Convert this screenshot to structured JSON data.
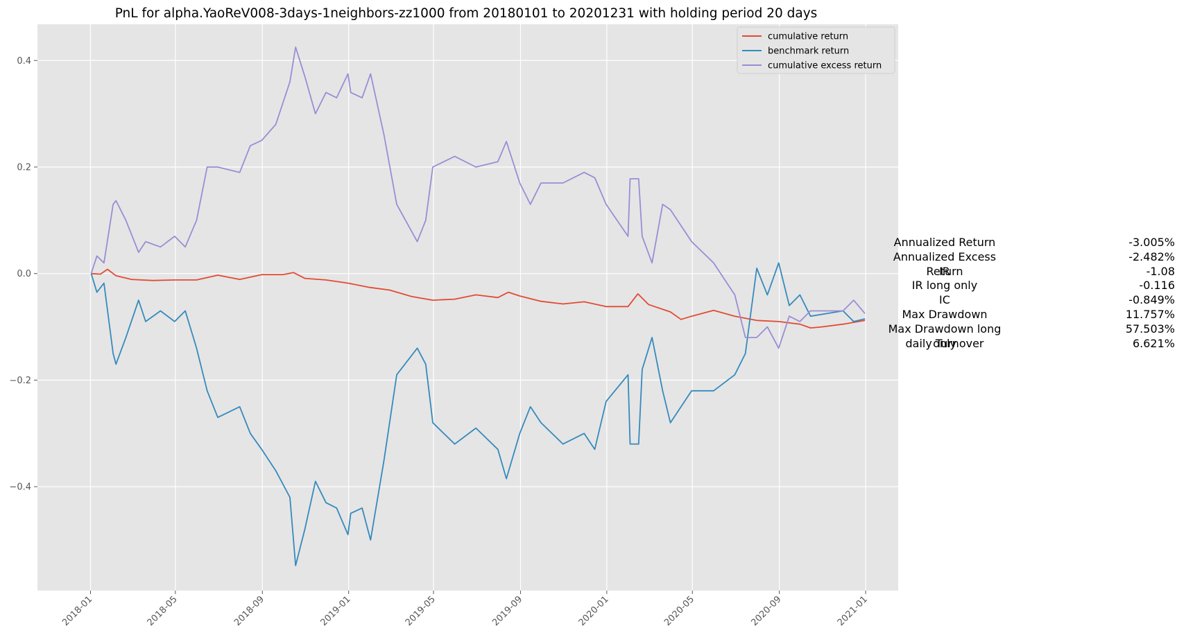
{
  "chart_data": {
    "type": "line",
    "title": "PnL for alpha.YaoReV008-3days-1neighbors-zz1000 from 20180101 to 20201231 with holding period 20 days",
    "xlabel": "",
    "ylabel": "",
    "x_ticks": [
      "2018-01",
      "2018-05",
      "2018-09",
      "2019-01",
      "2019-05",
      "2019-09",
      "2020-01",
      "2020-05",
      "2020-09",
      "2021-01"
    ],
    "y_ticks": [
      0.4,
      0.2,
      0.0,
      -0.2,
      -0.4
    ],
    "y_tick_labels": [
      "0.4",
      "0.2",
      "0.0",
      "−0.2",
      "−0.4"
    ],
    "xlim": [
      "2017-10-18",
      "2021-02-16"
    ],
    "ylim": [
      -0.595,
      0.468
    ],
    "grid": true,
    "legend_position": "top-right",
    "series": [
      {
        "name": "cumulative return",
        "color": "#E24A33",
        "points": [
          [
            "2018-01-02",
            0.0
          ],
          [
            "2018-01-15",
            -0.001
          ],
          [
            "2018-01-25",
            0.008
          ],
          [
            "2018-02-06",
            -0.004
          ],
          [
            "2018-02-28",
            -0.011
          ],
          [
            "2018-03-30",
            -0.013
          ],
          [
            "2018-04-30",
            -0.012
          ],
          [
            "2018-05-31",
            -0.012
          ],
          [
            "2018-06-30",
            -0.003
          ],
          [
            "2018-07-31",
            -0.011
          ],
          [
            "2018-08-31",
            -0.002
          ],
          [
            "2018-09-30",
            -0.002
          ],
          [
            "2018-10-15",
            0.002
          ],
          [
            "2018-10-31",
            -0.009
          ],
          [
            "2018-11-30",
            -0.012
          ],
          [
            "2018-12-31",
            -0.018
          ],
          [
            "2019-01-31",
            -0.026
          ],
          [
            "2019-02-28",
            -0.031
          ],
          [
            "2019-03-31",
            -0.043
          ],
          [
            "2019-04-30",
            -0.05
          ],
          [
            "2019-05-31",
            -0.048
          ],
          [
            "2019-06-30",
            -0.04
          ],
          [
            "2019-07-31",
            -0.045
          ],
          [
            "2019-08-15",
            -0.035
          ],
          [
            "2019-08-31",
            -0.042
          ],
          [
            "2019-09-30",
            -0.052
          ],
          [
            "2019-10-31",
            -0.057
          ],
          [
            "2019-11-30",
            -0.053
          ],
          [
            "2019-12-31",
            -0.062
          ],
          [
            "2020-01-31",
            -0.062
          ],
          [
            "2020-02-14",
            -0.038
          ],
          [
            "2020-02-29",
            -0.058
          ],
          [
            "2020-03-31",
            -0.072
          ],
          [
            "2020-04-15",
            -0.086
          ],
          [
            "2020-04-30",
            -0.08
          ],
          [
            "2020-05-31",
            -0.069
          ],
          [
            "2020-06-30",
            -0.08
          ],
          [
            "2020-07-31",
            -0.088
          ],
          [
            "2020-08-31",
            -0.09
          ],
          [
            "2020-09-30",
            -0.095
          ],
          [
            "2020-10-15",
            -0.102
          ],
          [
            "2020-10-31",
            -0.1
          ],
          [
            "2020-11-30",
            -0.095
          ],
          [
            "2020-12-31",
            -0.088
          ]
        ]
      },
      {
        "name": "benchmark return",
        "color": "#348ABD",
        "points": [
          [
            "2018-01-02",
            0.0
          ],
          [
            "2018-01-10",
            -0.035
          ],
          [
            "2018-01-20",
            -0.018
          ],
          [
            "2018-02-02",
            -0.15
          ],
          [
            "2018-02-06",
            -0.17
          ],
          [
            "2018-02-20",
            -0.12
          ],
          [
            "2018-03-10",
            -0.05
          ],
          [
            "2018-03-20",
            -0.09
          ],
          [
            "2018-04-10",
            -0.07
          ],
          [
            "2018-04-30",
            -0.09
          ],
          [
            "2018-05-15",
            -0.07
          ],
          [
            "2018-05-31",
            -0.14
          ],
          [
            "2018-06-15",
            -0.22
          ],
          [
            "2018-06-30",
            -0.27
          ],
          [
            "2018-07-31",
            -0.25
          ],
          [
            "2018-08-15",
            -0.3
          ],
          [
            "2018-08-31",
            -0.33
          ],
          [
            "2018-09-20",
            -0.37
          ],
          [
            "2018-10-10",
            -0.42
          ],
          [
            "2018-10-18",
            -0.548
          ],
          [
            "2018-10-31",
            -0.48
          ],
          [
            "2018-11-15",
            -0.39
          ],
          [
            "2018-11-30",
            -0.43
          ],
          [
            "2018-12-15",
            -0.44
          ],
          [
            "2018-12-31",
            -0.49
          ],
          [
            "2019-01-04",
            -0.45
          ],
          [
            "2019-01-20",
            -0.44
          ],
          [
            "2019-02-01",
            -0.5
          ],
          [
            "2019-02-20",
            -0.35
          ],
          [
            "2019-03-10",
            -0.19
          ],
          [
            "2019-04-08",
            -0.14
          ],
          [
            "2019-04-20",
            -0.17
          ],
          [
            "2019-04-30",
            -0.28
          ],
          [
            "2019-05-31",
            -0.32
          ],
          [
            "2019-06-30",
            -0.29
          ],
          [
            "2019-07-31",
            -0.33
          ],
          [
            "2019-08-12",
            -0.385
          ],
          [
            "2019-08-31",
            -0.3
          ],
          [
            "2019-09-15",
            -0.25
          ],
          [
            "2019-09-30",
            -0.28
          ],
          [
            "2019-10-31",
            -0.32
          ],
          [
            "2019-11-30",
            -0.3
          ],
          [
            "2019-12-15",
            -0.33
          ],
          [
            "2019-12-31",
            -0.24
          ],
          [
            "2020-01-31",
            -0.19
          ],
          [
            "2020-02-03",
            -0.32
          ],
          [
            "2020-02-15",
            -0.32
          ],
          [
            "2020-02-20",
            -0.18
          ],
          [
            "2020-03-05",
            -0.12
          ],
          [
            "2020-03-20",
            -0.22
          ],
          [
            "2020-03-31",
            -0.28
          ],
          [
            "2020-04-30",
            -0.22
          ],
          [
            "2020-05-31",
            -0.22
          ],
          [
            "2020-06-30",
            -0.19
          ],
          [
            "2020-07-15",
            -0.15
          ],
          [
            "2020-07-31",
            0.01
          ],
          [
            "2020-08-15",
            -0.04
          ],
          [
            "2020-08-31",
            0.02
          ],
          [
            "2020-09-15",
            -0.06
          ],
          [
            "2020-09-30",
            -0.04
          ],
          [
            "2020-10-15",
            -0.08
          ],
          [
            "2020-11-30",
            -0.07
          ],
          [
            "2020-12-15",
            -0.09
          ],
          [
            "2020-12-31",
            -0.085
          ]
        ]
      },
      {
        "name": "cumulative excess return",
        "color": "#988ED5",
        "points": [
          [
            "2018-01-02",
            0.0
          ],
          [
            "2018-01-10",
            0.033
          ],
          [
            "2018-01-20",
            0.02
          ],
          [
            "2018-02-02",
            0.13
          ],
          [
            "2018-02-06",
            0.137
          ],
          [
            "2018-02-20",
            0.1
          ],
          [
            "2018-03-10",
            0.04
          ],
          [
            "2018-03-20",
            0.06
          ],
          [
            "2018-04-10",
            0.05
          ],
          [
            "2018-04-30",
            0.07
          ],
          [
            "2018-05-15",
            0.05
          ],
          [
            "2018-05-31",
            0.1
          ],
          [
            "2018-06-15",
            0.2
          ],
          [
            "2018-06-30",
            0.2
          ],
          [
            "2018-07-31",
            0.19
          ],
          [
            "2018-08-15",
            0.24
          ],
          [
            "2018-08-31",
            0.25
          ],
          [
            "2018-09-20",
            0.28
          ],
          [
            "2018-10-10",
            0.36
          ],
          [
            "2018-10-18",
            0.425
          ],
          [
            "2018-10-31",
            0.37
          ],
          [
            "2018-11-15",
            0.3
          ],
          [
            "2018-11-30",
            0.34
          ],
          [
            "2018-12-15",
            0.33
          ],
          [
            "2018-12-31",
            0.375
          ],
          [
            "2019-01-04",
            0.34
          ],
          [
            "2019-01-20",
            0.33
          ],
          [
            "2019-02-01",
            0.375
          ],
          [
            "2019-02-20",
            0.26
          ],
          [
            "2019-03-10",
            0.13
          ],
          [
            "2019-04-08",
            0.06
          ],
          [
            "2019-04-20",
            0.1
          ],
          [
            "2019-04-30",
            0.2
          ],
          [
            "2019-05-31",
            0.22
          ],
          [
            "2019-06-30",
            0.2
          ],
          [
            "2019-07-31",
            0.21
          ],
          [
            "2019-08-12",
            0.248
          ],
          [
            "2019-08-31",
            0.17
          ],
          [
            "2019-09-15",
            0.13
          ],
          [
            "2019-09-30",
            0.17
          ],
          [
            "2019-10-31",
            0.17
          ],
          [
            "2019-11-30",
            0.19
          ],
          [
            "2019-12-15",
            0.18
          ],
          [
            "2019-12-31",
            0.13
          ],
          [
            "2020-01-31",
            0.07
          ],
          [
            "2020-02-03",
            0.178
          ],
          [
            "2020-02-15",
            0.178
          ],
          [
            "2020-02-20",
            0.07
          ],
          [
            "2020-03-05",
            0.02
          ],
          [
            "2020-03-20",
            0.13
          ],
          [
            "2020-03-31",
            0.12
          ],
          [
            "2020-04-30",
            0.06
          ],
          [
            "2020-05-31",
            0.02
          ],
          [
            "2020-06-30",
            -0.04
          ],
          [
            "2020-07-15",
            -0.12
          ],
          [
            "2020-07-31",
            -0.12
          ],
          [
            "2020-08-15",
            -0.1
          ],
          [
            "2020-08-31",
            -0.14
          ],
          [
            "2020-09-15",
            -0.08
          ],
          [
            "2020-09-30",
            -0.09
          ],
          [
            "2020-10-15",
            -0.07
          ],
          [
            "2020-11-30",
            -0.07
          ],
          [
            "2020-12-15",
            -0.05
          ],
          [
            "2020-12-31",
            -0.075
          ]
        ]
      }
    ]
  },
  "stats": [
    {
      "label": "Annualized Return",
      "value": "-3.005%"
    },
    {
      "label": "Annualized Excess Return",
      "value": "-2.482%"
    },
    {
      "label": "IR",
      "value": "-1.08"
    },
    {
      "label": "IR long only",
      "value": "-0.116"
    },
    {
      "label": "IC",
      "value": "-0.849%"
    },
    {
      "label": "Max Drawdown",
      "value": "11.757%"
    },
    {
      "label": "Max Drawdown long only",
      "value": "57.503%"
    },
    {
      "label": "daily Turnover",
      "value": "6.621%"
    }
  ]
}
